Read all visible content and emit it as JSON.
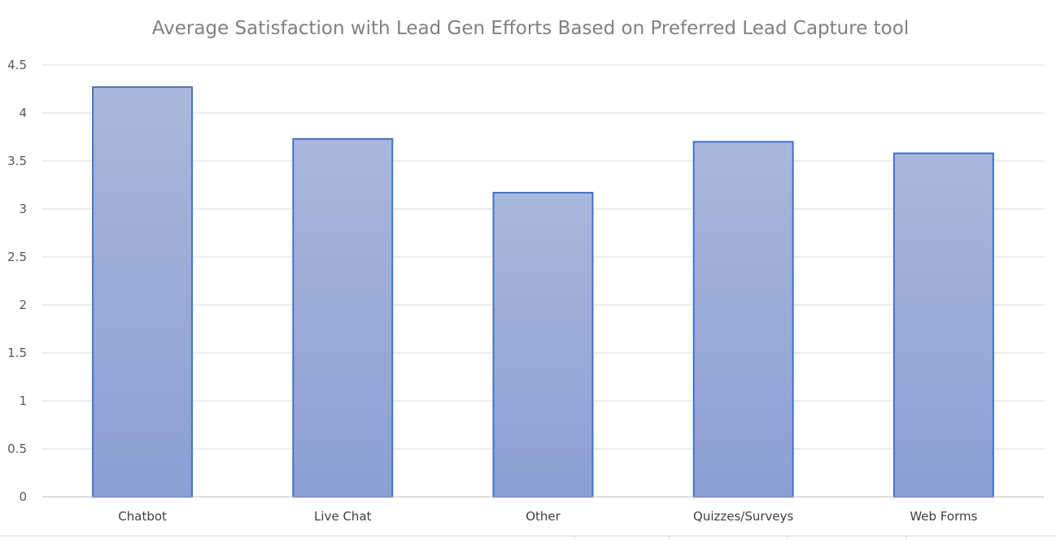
{
  "chart_data": {
    "type": "bar",
    "title": "Average Satisfaction with Lead Gen Efforts Based on Preferred Lead Capture tool",
    "xlabel": "",
    "ylabel": "",
    "categories": [
      "Chatbot",
      "Live Chat",
      "Other",
      "Quizzes/Surveys",
      "Web Forms"
    ],
    "values": [
      4.27,
      3.73,
      3.17,
      3.7,
      3.58
    ],
    "ylim": [
      0,
      4.5
    ],
    "yticks": [
      "0",
      "0.5",
      "1",
      "1.5",
      "2",
      "2.5",
      "3",
      "3.5",
      "4",
      "4.5"
    ],
    "ytick_values": [
      0,
      0.5,
      1,
      1.5,
      2,
      2.5,
      3,
      3.5,
      4,
      4.5
    ],
    "grid": true,
    "legend": "none",
    "colors": {
      "bar_fill_top": "#aab7dc",
      "bar_fill_bottom": "#8b9fd3",
      "bar_stroke": "#4472c4",
      "gridline": "#d9d9d9",
      "axis": "#bfbfbf",
      "title": "#808080"
    }
  }
}
